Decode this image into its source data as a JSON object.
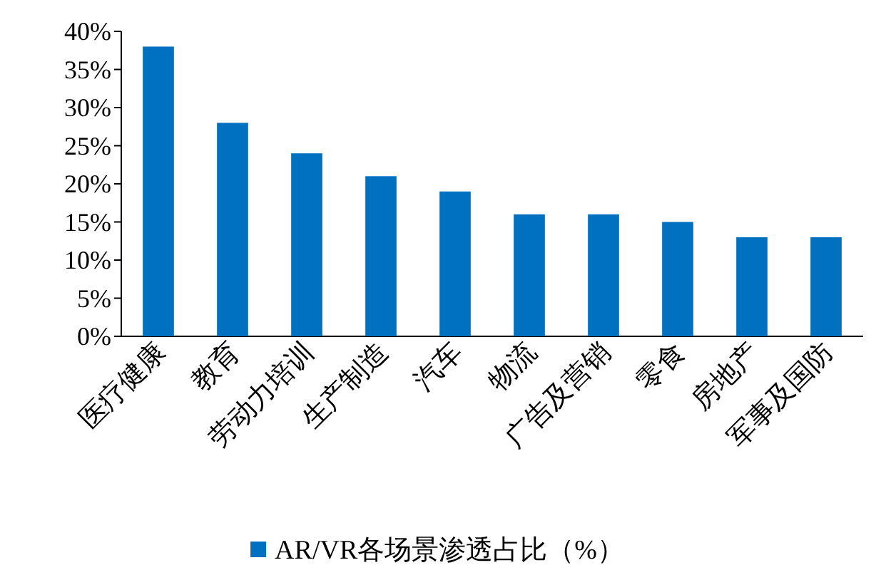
{
  "chart_data": {
    "type": "bar",
    "categories": [
      "医疗健康",
      "教育",
      "劳动力培训",
      "生产制造",
      "汽车",
      "物流",
      "广告及营销",
      "零食",
      "房地产",
      "军事及国防"
    ],
    "series": [
      {
        "name": "AR/VR各场景渗透占比（%）",
        "color": "#0070c0",
        "values": [
          38,
          28,
          24,
          21,
          19,
          16,
          16,
          15,
          13,
          13
        ]
      }
    ],
    "ylim": [
      0,
      40
    ],
    "yticks": [
      {
        "value": 0,
        "label": "0%"
      },
      {
        "value": 5,
        "label": "5%"
      },
      {
        "value": 10,
        "label": "10%"
      },
      {
        "value": 15,
        "label": "15%"
      },
      {
        "value": 20,
        "label": "20%"
      },
      {
        "value": 25,
        "label": "25%"
      },
      {
        "value": 30,
        "label": "30%"
      },
      {
        "value": 35,
        "label": "35%"
      },
      {
        "value": 40,
        "label": "40%"
      }
    ],
    "legend": "bottom"
  }
}
